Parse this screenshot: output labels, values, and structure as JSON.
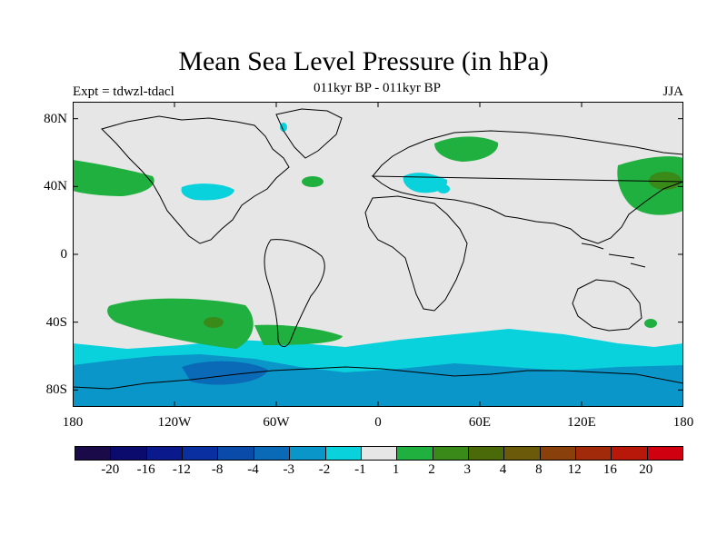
{
  "title": "Mean Sea Level Pressure (in hPa)",
  "subtitle": "011kyr BP - 011kyr BP",
  "experiment": "Expt = tdwzl-tdacl",
  "season": "JJA",
  "map": {
    "projection": "equirectangular",
    "lon_range": [
      -180,
      180
    ],
    "lat_range": [
      -90,
      90
    ],
    "background_color": "#e6e6e6",
    "coastline_color": "#000000",
    "lat_ticks": [
      {
        "value": 80,
        "label": "80N"
      },
      {
        "value": 40,
        "label": "40N"
      },
      {
        "value": 0,
        "label": "0"
      },
      {
        "value": -40,
        "label": "40S"
      },
      {
        "value": -80,
        "label": "80S"
      }
    ],
    "lon_ticks": [
      {
        "value": -180,
        "label": "180"
      },
      {
        "value": -120,
        "label": "120W"
      },
      {
        "value": -60,
        "label": "60W"
      },
      {
        "value": 0,
        "label": "0"
      },
      {
        "value": 60,
        "label": "60E"
      },
      {
        "value": 120,
        "label": "120E"
      },
      {
        "value": 180,
        "label": "180"
      }
    ]
  },
  "colorbar": {
    "colors": [
      "#1a0a4a",
      "#0b0b6e",
      "#0a1a8c",
      "#0a2fa0",
      "#0a4aa8",
      "#0a6ab8",
      "#0a96c8",
      "#0ad2dc",
      "#e6e6e6",
      "#20b040",
      "#3a8a1a",
      "#4a6a0a",
      "#6a5a0a",
      "#8a400a",
      "#a02a0a",
      "#b8180a",
      "#d00010"
    ],
    "labels": [
      "-20",
      "-16",
      "-12",
      "-8",
      "-4",
      "-3",
      "-2",
      "-1",
      "1",
      "2",
      "3",
      "4",
      "8",
      "12",
      "16",
      "20"
    ]
  },
  "chart_data": {
    "type": "heatmap",
    "title": "Mean Sea Level Pressure (in hPa)",
    "subtitle": "011kyr BP - 011kyr BP",
    "units": "hPa",
    "levels": [
      -20,
      -16,
      -12,
      -8,
      -4,
      -3,
      -2,
      -1,
      1,
      2,
      3,
      4,
      8,
      12,
      16,
      20
    ],
    "regions": [
      {
        "label": "North Pacific west of North America",
        "level_range": [
          1,
          2
        ],
        "center": [
          -165,
          45
        ]
      },
      {
        "label": "North Pacific near Kamchatka",
        "level_range": [
          1,
          2
        ],
        "center": [
          165,
          52
        ]
      },
      {
        "label": "Northwest Pacific core",
        "level_range": [
          2,
          3
        ],
        "center": [
          167,
          44
        ]
      },
      {
        "label": "Northern Russia",
        "level_range": [
          1,
          2
        ],
        "center": [
          45,
          66
        ]
      },
      {
        "label": "Mid North Atlantic",
        "level_range": [
          1,
          2
        ],
        "center": [
          -32,
          44
        ]
      },
      {
        "label": "Great Lakes region",
        "level_range": [
          -2,
          -1
        ],
        "center": [
          -80,
          38
        ]
      },
      {
        "label": "Black Sea / Caspian region",
        "level_range": [
          -2,
          -1
        ],
        "center": [
          45,
          44
        ]
      },
      {
        "label": "Baffin Bay",
        "level_range": [
          -2,
          -1
        ],
        "center": [
          -60,
          75
        ]
      },
      {
        "label": "South Pacific",
        "level_range": [
          1,
          2
        ],
        "center": [
          -100,
          -38
        ]
      },
      {
        "label": "South Pacific core",
        "level_range": [
          2,
          3
        ],
        "center": [
          -95,
          -40
        ]
      },
      {
        "label": "South Atlantic near Patagonia",
        "level_range": [
          1,
          2
        ],
        "center": [
          -50,
          -47
        ]
      },
      {
        "label": "Southern Ocean",
        "level_range": [
          -2,
          -1
        ],
        "center": [
          0,
          -65
        ]
      },
      {
        "label": "Antarctic coast Pacific sector",
        "level_range": [
          -3,
          -2
        ],
        "center": [
          -100,
          -73
        ]
      },
      {
        "label": "Ross Sea",
        "level_range": [
          -4,
          -3
        ],
        "center": [
          -110,
          -70
        ]
      }
    ]
  }
}
